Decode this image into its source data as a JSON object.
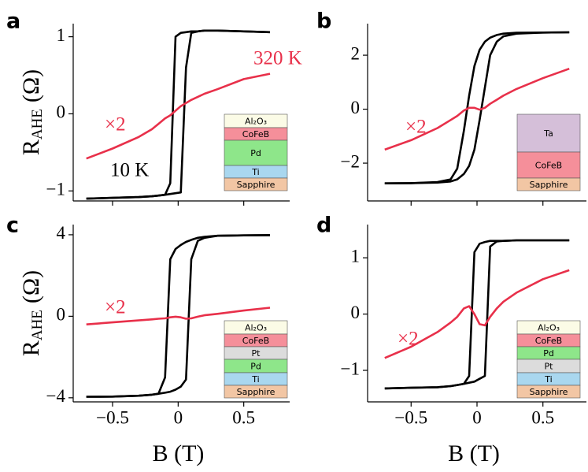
{
  "chart_data": [
    {
      "type": "line",
      "panel_label": "a",
      "ylabel": {
        "main": "R",
        "sub": "AHE",
        "rest": "(Ω)"
      },
      "xlim": [
        -0.8,
        0.85
      ],
      "ylim": [
        -1.13,
        1.17
      ],
      "xticks": [
        {
          "value": -0.5,
          "label": "−0.5"
        },
        0,
        0.5
      ],
      "show_xtick_labels": false,
      "yticks": [
        {
          "value": -1,
          "label": "−1"
        },
        0,
        1
      ],
      "x": [
        -0.7,
        -0.5,
        -0.3,
        -0.2,
        -0.15,
        -0.1,
        -0.06,
        -0.02,
        0.02,
        0.06,
        0.1,
        0.15,
        0.2,
        0.3,
        0.5,
        0.7
      ],
      "series": [
        {
          "color": "#000000",
          "values": [
            -1.1,
            -1.09,
            -1.08,
            -1.07,
            -1.06,
            -1.05,
            -0.9,
            1.0,
            1.05,
            1.06,
            1.07,
            1.07,
            1.08,
            1.08,
            1.07,
            1.06
          ]
        },
        {
          "color": "#000000",
          "values": [
            -1.1,
            -1.09,
            -1.08,
            -1.07,
            -1.06,
            -1.05,
            -1.04,
            -1.03,
            -1.02,
            0.6,
            1.05,
            1.07,
            1.08,
            1.08,
            1.07,
            1.06
          ]
        },
        {
          "color": "#e8304a",
          "values": [
            -0.58,
            -0.45,
            -0.3,
            -0.2,
            -0.13,
            -0.06,
            -0.02,
            0.04,
            0.1,
            0.14,
            0.18,
            0.22,
            0.26,
            0.32,
            0.45,
            0.52
          ]
        }
      ],
      "annotations": [
        {
          "text": "320 K",
          "color": "#e8304a"
        },
        {
          "text": "×2",
          "color": "#e8304a"
        },
        {
          "text": "10 K",
          "color": "#000000"
        }
      ],
      "layers": [
        {
          "label": "Al₂O₃",
          "color": "#fbfbe6"
        },
        {
          "label": "CoFeB",
          "color": "#f58f9a"
        },
        {
          "label": "Pd",
          "color": "#8ee68a"
        },
        {
          "label": "Ti",
          "color": "#a9d7ef"
        },
        {
          "label": "Sapphire",
          "color": "#f2c6a4"
        }
      ]
    },
    {
      "type": "line",
      "panel_label": "b",
      "xlim": [
        -0.83,
        0.83
      ],
      "ylim": [
        -3.4,
        3.17
      ],
      "xticks": [
        {
          "value": -0.5,
          "label": "−0.5"
        },
        0,
        0.5
      ],
      "show_xtick_labels": false,
      "yticks": [
        {
          "value": -2,
          "label": "−2"
        },
        0,
        2
      ],
      "x": [
        -0.7,
        -0.5,
        -0.3,
        -0.2,
        -0.15,
        -0.1,
        -0.06,
        -0.02,
        0.02,
        0.06,
        0.1,
        0.15,
        0.2,
        0.3,
        0.5,
        0.7
      ],
      "series": [
        {
          "color": "#000000",
          "values": [
            -2.75,
            -2.74,
            -2.7,
            -2.6,
            -2.2,
            -0.8,
            0.5,
            1.6,
            2.2,
            2.5,
            2.65,
            2.75,
            2.8,
            2.83,
            2.84,
            2.85
          ]
        },
        {
          "color": "#000000",
          "values": [
            -2.75,
            -2.74,
            -2.72,
            -2.68,
            -2.6,
            -2.4,
            -2.1,
            -1.5,
            -0.4,
            0.8,
            2.0,
            2.5,
            2.7,
            2.8,
            2.84,
            2.85
          ]
        },
        {
          "color": "#e8304a",
          "values": [
            -1.5,
            -1.15,
            -0.7,
            -0.4,
            -0.25,
            -0.05,
            0.05,
            0.05,
            -0.02,
            0.05,
            0.2,
            0.35,
            0.5,
            0.75,
            1.15,
            1.5
          ]
        }
      ],
      "annotations": [
        {
          "text": "×2",
          "color": "#e8304a"
        }
      ],
      "layers": [
        {
          "label": "Ta",
          "color": "#d5bfd9"
        },
        {
          "label": "CoFeB",
          "color": "#f58f9a"
        },
        {
          "label": "Sapphire",
          "color": "#f2c6a4"
        }
      ]
    },
    {
      "type": "line",
      "panel_label": "c",
      "ylabel": {
        "main": "R",
        "sub": "AHE",
        "rest": "(Ω)"
      },
      "xlabel": "B (T)",
      "xlim": [
        -0.8,
        0.85
      ],
      "ylim": [
        -4.2,
        4.5
      ],
      "xticks": [
        {
          "value": -0.5,
          "label": "−0.5"
        },
        0,
        0.5
      ],
      "show_xtick_labels": true,
      "yticks": [
        {
          "value": -4,
          "label": "−4"
        },
        0,
        4
      ],
      "x": [
        -0.7,
        -0.5,
        -0.3,
        -0.2,
        -0.15,
        -0.1,
        -0.06,
        -0.02,
        0.02,
        0.06,
        0.1,
        0.15,
        0.2,
        0.3,
        0.5,
        0.7
      ],
      "series": [
        {
          "color": "#000000",
          "values": [
            -3.95,
            -3.94,
            -3.9,
            -3.85,
            -3.8,
            -3.0,
            2.8,
            3.3,
            3.5,
            3.65,
            3.75,
            3.85,
            3.9,
            3.95,
            3.97,
            3.98
          ]
        },
        {
          "color": "#000000",
          "values": [
            -3.95,
            -3.94,
            -3.9,
            -3.85,
            -3.8,
            -3.75,
            -3.7,
            -3.6,
            -3.45,
            -3.1,
            2.8,
            3.7,
            3.85,
            3.95,
            3.97,
            3.98
          ]
        },
        {
          "color": "#e8304a",
          "values": [
            -0.4,
            -0.3,
            -0.2,
            -0.15,
            -0.12,
            -0.1,
            -0.05,
            -0.02,
            -0.05,
            -0.12,
            -0.1,
            -0.02,
            0.05,
            0.12,
            0.28,
            0.42
          ]
        }
      ],
      "annotations": [
        {
          "text": "×2",
          "color": "#e8304a"
        }
      ],
      "layers": [
        {
          "label": "Al₂O₃",
          "color": "#fbfbe6"
        },
        {
          "label": "CoFeB",
          "color": "#f58f9a"
        },
        {
          "label": "Pt",
          "color": "#dcdcdc"
        },
        {
          "label": "Pd",
          "color": "#8ee68a"
        },
        {
          "label": "Ti",
          "color": "#a9d7ef"
        },
        {
          "label": "Sapphire",
          "color": "#f2c6a4"
        }
      ]
    },
    {
      "type": "line",
      "panel_label": "d",
      "xlabel": "B (T)",
      "xlim": [
        -0.83,
        0.83
      ],
      "ylim": [
        -1.56,
        1.59
      ],
      "xticks": [
        {
          "value": -0.5,
          "label": "−0.5"
        },
        0,
        0.5
      ],
      "show_xtick_labels": true,
      "yticks": [
        {
          "value": -1,
          "label": "−1"
        },
        0,
        1
      ],
      "x": [
        -0.7,
        -0.5,
        -0.3,
        -0.2,
        -0.15,
        -0.1,
        -0.06,
        -0.02,
        0.02,
        0.06,
        0.1,
        0.15,
        0.2,
        0.3,
        0.5,
        0.7
      ],
      "series": [
        {
          "color": "#000000",
          "values": [
            -1.32,
            -1.31,
            -1.3,
            -1.28,
            -1.26,
            -1.24,
            -1.1,
            1.1,
            1.25,
            1.28,
            1.3,
            1.3,
            1.3,
            1.31,
            1.31,
            1.31
          ]
        },
        {
          "color": "#000000",
          "values": [
            -1.32,
            -1.31,
            -1.3,
            -1.28,
            -1.26,
            -1.24,
            -1.22,
            -1.2,
            -1.15,
            -1.1,
            1.2,
            1.29,
            1.3,
            1.31,
            1.31,
            1.31
          ]
        },
        {
          "color": "#e8304a",
          "values": [
            -0.78,
            -0.58,
            -0.32,
            -0.15,
            -0.05,
            0.1,
            0.14,
            0.0,
            -0.18,
            -0.2,
            -0.05,
            0.1,
            0.22,
            0.38,
            0.62,
            0.78
          ]
        }
      ],
      "annotations": [
        {
          "text": "×2",
          "color": "#e8304a"
        }
      ],
      "layers": [
        {
          "label": "Al₂O₃",
          "color": "#fbfbe6"
        },
        {
          "label": "CoFeB",
          "color": "#f58f9a"
        },
        {
          "label": "Pd",
          "color": "#8ee68a"
        },
        {
          "label": "Pt",
          "color": "#dcdcdc"
        },
        {
          "label": "Ti",
          "color": "#a9d7ef"
        },
        {
          "label": "Sapphire",
          "color": "#f2c6a4"
        }
      ]
    }
  ]
}
